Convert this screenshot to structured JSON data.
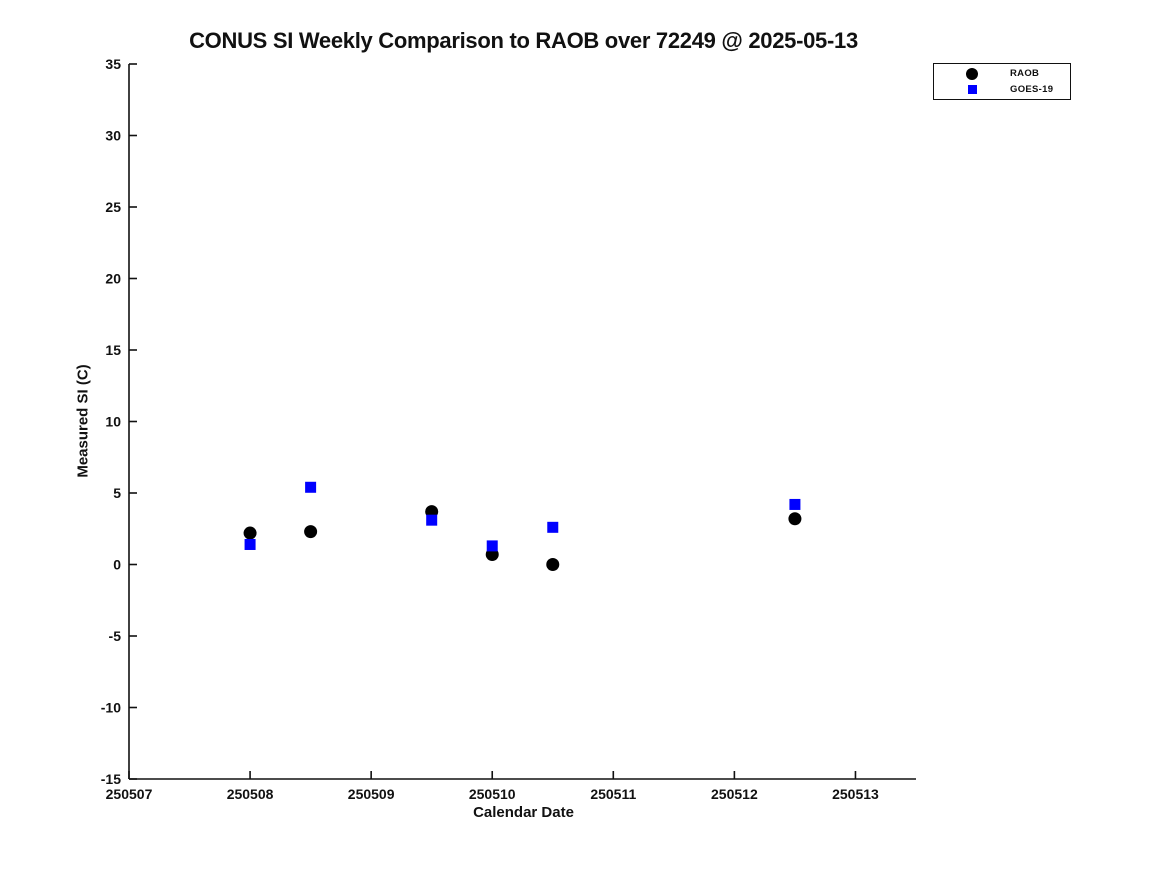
{
  "figure": {
    "background": "#ffffff",
    "text_color": "#111111"
  },
  "chart_data": {
    "type": "scatter",
    "title": "CONUS SI Weekly Comparison to RAOB over 72249 @ 2025-05-13",
    "xlabel": "Calendar Date",
    "ylabel": "Measured SI (C)",
    "xlim": [
      250507,
      250513.5
    ],
    "ylim": [
      -15,
      35
    ],
    "xticks": [
      250507,
      250508,
      250509,
      250510,
      250511,
      250512,
      250513
    ],
    "yticks": [
      35,
      30,
      25,
      20,
      15,
      10,
      5,
      0,
      -5,
      -10,
      -15
    ],
    "grid": false,
    "legend": {
      "position": "top-right",
      "entries": [
        {
          "label": "RAOB",
          "marker": "circle",
          "color": "#000000"
        },
        {
          "label": "GOES-19",
          "marker": "square",
          "color": "#0000ff"
        }
      ]
    },
    "series": [
      {
        "name": "RAOB",
        "marker": "circle",
        "color": "#000000",
        "points": [
          [
            250508.0,
            2.2
          ],
          [
            250508.5,
            2.3
          ],
          [
            250509.5,
            3.7
          ],
          [
            250510.0,
            0.7
          ],
          [
            250510.5,
            0.0
          ],
          [
            250512.5,
            3.2
          ]
        ]
      },
      {
        "name": "GOES-19",
        "marker": "square",
        "color": "#0000ff",
        "points": [
          [
            250508.0,
            1.4
          ],
          [
            250508.5,
            5.4
          ],
          [
            250509.5,
            3.1
          ],
          [
            250510.0,
            1.3
          ],
          [
            250510.5,
            2.6
          ],
          [
            250512.5,
            4.2
          ]
        ]
      }
    ]
  }
}
